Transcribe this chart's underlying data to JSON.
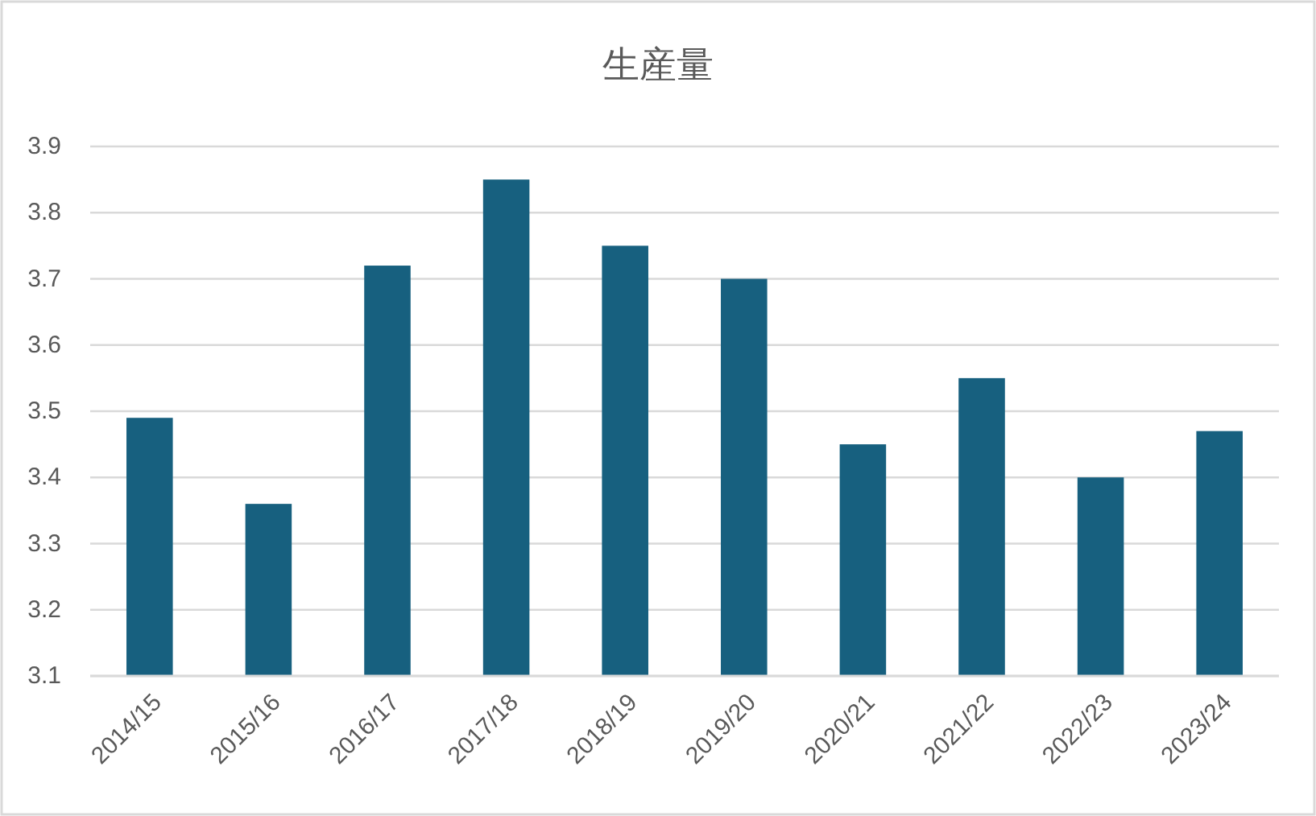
{
  "chart_data": {
    "type": "bar",
    "title": "生産量",
    "categories": [
      "2014/15",
      "2015/16",
      "2016/17",
      "2017/18",
      "2018/19",
      "2019/20",
      "2020/21",
      "2021/22",
      "2022/23",
      "2023/24"
    ],
    "values": [
      3.49,
      3.36,
      3.72,
      3.85,
      3.75,
      3.7,
      3.45,
      3.55,
      3.4,
      3.47
    ],
    "color": "#17607f",
    "ylim": [
      3.1,
      3.9
    ],
    "yticks": [
      3.1,
      3.2,
      3.3,
      3.4,
      3.5,
      3.6,
      3.7,
      3.8,
      3.9
    ],
    "grid": "y"
  }
}
